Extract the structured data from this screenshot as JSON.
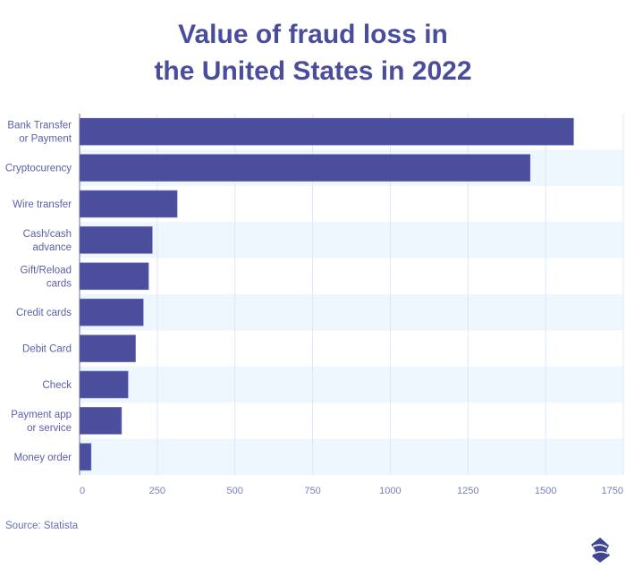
{
  "chart_data": {
    "type": "bar",
    "orientation": "horizontal",
    "title_lines": [
      "Value of fraud loss in",
      "the United States in 2022"
    ],
    "categories": [
      [
        "Bank Transfer",
        "or Payment"
      ],
      [
        "Cryptocurency"
      ],
      [
        "Wire transfer"
      ],
      [
        "Cash/cash",
        "advance"
      ],
      [
        "Gift/Reload",
        "cards"
      ],
      [
        "Credit cards"
      ],
      [
        "Debit Card"
      ],
      [
        "Check"
      ],
      [
        "Payment app",
        "or service"
      ],
      [
        "Money order"
      ]
    ],
    "values": [
      1590,
      1450,
      314,
      234,
      222,
      205,
      180,
      156,
      135,
      37
    ],
    "xlim": [
      0,
      1750
    ],
    "xticks": [
      "0",
      "250",
      "500",
      "750",
      "1000",
      "1250",
      "1500",
      "1750"
    ],
    "grid": "vertical",
    "colors": {
      "bar": "#4a4e9c",
      "band": "#eef6fe",
      "grid": "#dbe8fa",
      "title": "#4a4d9c"
    }
  },
  "source": "Source: Statista"
}
